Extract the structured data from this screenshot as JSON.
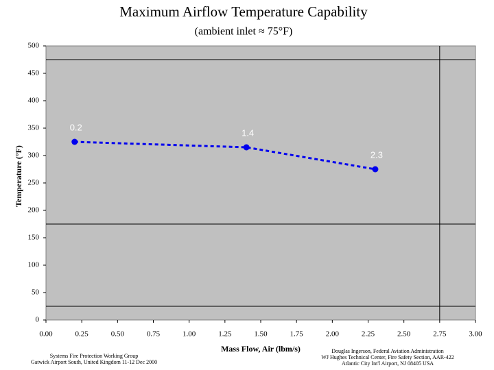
{
  "chart_data": {
    "type": "line",
    "title": "Maximum Airflow Temperature Capability",
    "subtitle": "(ambient inlet ≈ 75°F)",
    "x_label": "Mass Flow, Air (lbm/s)",
    "y_label": "Temperature (°F)",
    "x": [
      0.2,
      1.4,
      2.3
    ],
    "series": [
      {
        "name": "Temperature",
        "color": "#0000ee",
        "values": [
          325,
          315,
          275
        ],
        "point_labels": [
          "0.2",
          "1.4",
          "2.3"
        ]
      }
    ],
    "xlim": [
      0,
      3
    ],
    "ylim": [
      0,
      500
    ],
    "xticks": [
      {
        "value": 0,
        "label": "0.00"
      },
      {
        "value": 0.25,
        "label": "0.25"
      },
      {
        "value": 0.5,
        "label": "0.50"
      },
      {
        "value": 0.75,
        "label": "0.75"
      },
      {
        "value": 1,
        "label": "1.00"
      },
      {
        "value": 1.25,
        "label": "1.25"
      },
      {
        "value": 1.5,
        "label": "1.50"
      },
      {
        "value": 1.75,
        "label": "1.75"
      },
      {
        "value": 2,
        "label": "2.00"
      },
      {
        "value": 2.25,
        "label": "2.25"
      },
      {
        "value": 2.5,
        "label": "2.50"
      },
      {
        "value": 2.75,
        "label": "2.75"
      },
      {
        "value": 3,
        "label": "3.00"
      }
    ],
    "yticks": [
      0,
      50,
      100,
      150,
      200,
      250,
      300,
      350,
      400,
      450,
      500
    ],
    "hlines": [
      475,
      175,
      25
    ],
    "vlines": [
      2.75
    ],
    "footer_left": [
      "Systems Fire Protection Working Group",
      "Gatwick Airport South, United Kingdom   11-12 Dec 2000"
    ],
    "footer_right": [
      "Douglas Ingerson, Federal Aviation Administration",
      "WJ Hughes Technical Center, Fire Safety Section, AAR-422",
      "Atlantic City Int'l Airport, NJ 08405   USA"
    ]
  }
}
